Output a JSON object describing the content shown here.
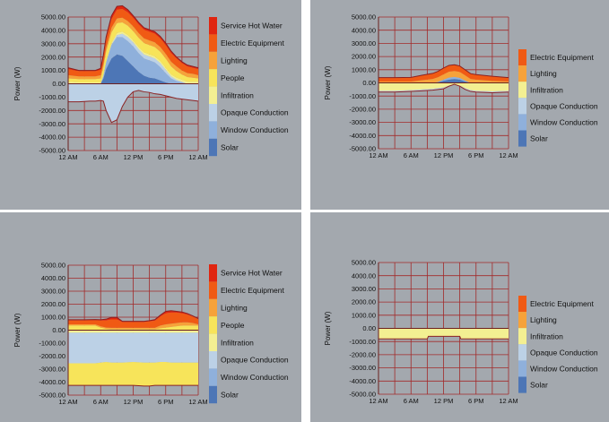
{
  "palette": {
    "shw": "#e02510",
    "eeq": "#f05a14",
    "lig": "#f6a23a",
    "ppl": "#f7e45a",
    "inf": "#f3ef92",
    "opq": "#bcd1e6",
    "win": "#8fb0db",
    "sol": "#4d76b6",
    "grid": "#a32a2a",
    "axis": "#6b1f1f",
    "edge": "#8b2222"
  },
  "chart_data": [
    {
      "type": "area",
      "subtype": "stacked",
      "ylabel": "Power (W)",
      "ylim": [
        -5000,
        5000
      ],
      "yticks": [
        "5000.00",
        "4000.00",
        "3000.00",
        "2000.00",
        "1000.00",
        "0.00",
        "-1000.00",
        "-2000.00",
        "-3000.00",
        "-4000.00",
        "-5000.00"
      ],
      "xticks": [
        "12 AM",
        "6 AM",
        "12 PM",
        "6 PM",
        "12 AM"
      ],
      "x": [
        0,
        2,
        4,
        5,
        6,
        6.5,
        7,
        8,
        9,
        10,
        11,
        12,
        13,
        14,
        15,
        16,
        17,
        18,
        19,
        20,
        21,
        22,
        23,
        24
      ],
      "legend": [
        "Service Hot Water",
        "Electric Equipment",
        "Lighting",
        "People",
        "Infiltration",
        "Opaque Conduction",
        "Window Conduction",
        "Solar"
      ],
      "legend_keys": [
        "shw",
        "eeq",
        "lig",
        "ppl",
        "inf",
        "opq",
        "win",
        "sol"
      ],
      "positive": [
        {
          "key": "sol",
          "values": [
            0,
            0,
            0,
            0,
            0,
            400,
            1100,
            1900,
            2200,
            2100,
            1700,
            1300,
            900,
            600,
            450,
            400,
            250,
            100,
            0,
            0,
            0,
            0,
            0,
            0
          ]
        },
        {
          "key": "win",
          "values": [
            0,
            0,
            0,
            0,
            0,
            200,
            500,
            1000,
            1300,
            1400,
            1500,
            1500,
            1400,
            1300,
            1300,
            1200,
            1000,
            700,
            400,
            200,
            100,
            0,
            0,
            0
          ]
        },
        {
          "key": "opq",
          "values": [
            0,
            0,
            0,
            0,
            0,
            0,
            0,
            50,
            150,
            250,
            300,
            300,
            300,
            300,
            300,
            300,
            300,
            250,
            150,
            100,
            50,
            0,
            0,
            0
          ]
        },
        {
          "key": "inf",
          "values": [
            150,
            100,
            100,
            100,
            100,
            100,
            100,
            100,
            150,
            150,
            150,
            150,
            150,
            150,
            150,
            150,
            150,
            150,
            150,
            150,
            150,
            150,
            150,
            150
          ]
        },
        {
          "key": "ppl",
          "values": [
            250,
            250,
            250,
            250,
            300,
            550,
            700,
            800,
            750,
            700,
            700,
            700,
            700,
            700,
            700,
            700,
            700,
            700,
            600,
            500,
            400,
            350,
            300,
            250
          ]
        },
        {
          "key": "lig",
          "values": [
            250,
            200,
            200,
            200,
            250,
            250,
            300,
            350,
            350,
            350,
            350,
            350,
            350,
            350,
            350,
            350,
            350,
            350,
            350,
            350,
            300,
            300,
            300,
            250
          ]
        },
        {
          "key": "eeq",
          "values": [
            450,
            400,
            400,
            400,
            400,
            500,
            600,
            650,
            650,
            650,
            650,
            650,
            650,
            650,
            650,
            650,
            650,
            650,
            650,
            600,
            550,
            500,
            450,
            450
          ]
        },
        {
          "key": "shw",
          "values": [
            100,
            50,
            50,
            50,
            100,
            150,
            200,
            250,
            250,
            250,
            200,
            150,
            150,
            150,
            150,
            150,
            150,
            150,
            150,
            100,
            100,
            100,
            100,
            100
          ]
        }
      ],
      "negative": [
        {
          "key": "opq",
          "values": [
            -1350,
            -1350,
            -1300,
            -1300,
            -1250,
            -1300,
            -2000,
            -2900,
            -2700,
            -1700,
            -1000,
            -600,
            -500,
            -600,
            -650,
            -750,
            -800,
            -900,
            -1000,
            -1100,
            -1150,
            -1200,
            -1250,
            -1300
          ]
        }
      ]
    },
    {
      "type": "area",
      "subtype": "stacked",
      "ylabel": "Power (W)",
      "ylim": [
        -5000,
        5000
      ],
      "yticks": [
        "5000.00",
        "4000.00",
        "3000.00",
        "2000.00",
        "1000.00",
        "0.00",
        "-1000.00",
        "-2000.00",
        "-3000.00",
        "-4000.00",
        "-5000.00"
      ],
      "xticks": [
        "12 AM",
        "6 AM",
        "12 PM",
        "6 PM",
        "12 AM"
      ],
      "x": [
        0,
        3,
        6,
        8,
        10,
        11,
        12,
        13,
        14,
        15,
        16,
        17,
        18,
        21,
        24
      ],
      "legend": [
        "Electric Equipment",
        "Lighting",
        "Infiltration",
        "Opaque Conduction",
        "Window Conduction",
        "Solar"
      ],
      "legend_keys": [
        "eeq",
        "lig",
        "inf",
        "opq",
        "win",
        "sol"
      ],
      "positive": [
        {
          "key": "sol",
          "values": [
            0,
            0,
            0,
            0,
            0,
            50,
            150,
            250,
            300,
            250,
            100,
            0,
            0,
            0,
            0
          ]
        },
        {
          "key": "win",
          "values": [
            0,
            0,
            0,
            0,
            0,
            30,
            100,
            150,
            150,
            130,
            70,
            0,
            0,
            0,
            0
          ]
        },
        {
          "key": "lig",
          "values": [
            100,
            100,
            100,
            200,
            300,
            350,
            400,
            450,
            450,
            450,
            400,
            300,
            250,
            150,
            100
          ]
        },
        {
          "key": "eeq",
          "values": [
            300,
            300,
            320,
            380,
            420,
            450,
            480,
            480,
            480,
            450,
            420,
            400,
            380,
            350,
            300
          ]
        }
      ],
      "negative": [
        {
          "key": "inf",
          "values": [
            -600,
            -600,
            -550,
            -500,
            -450,
            -400,
            -350,
            -200,
            -100,
            -200,
            -400,
            -550,
            -600,
            -650,
            -600
          ]
        },
        {
          "key": "opq",
          "values": [
            -100,
            -100,
            -100,
            -100,
            -100,
            -100,
            -100,
            -50,
            0,
            -50,
            -100,
            -100,
            -100,
            -100,
            -100
          ]
        }
      ]
    },
    {
      "type": "area",
      "subtype": "stacked",
      "ylabel": "Power (W)",
      "ylim": [
        -5000,
        5000
      ],
      "yticks": [
        "5000.00",
        "4000.00",
        "3000.00",
        "2000.00",
        "1000.00",
        "0.00",
        "-1000.00",
        "-2000.00",
        "-3000.00",
        "-4000.00",
        "-5000.00"
      ],
      "xticks": [
        "12 AM",
        "6 AM",
        "12 PM",
        "6 PM",
        "12 AM"
      ],
      "x": [
        0,
        3,
        5,
        6,
        7,
        8,
        9,
        10,
        12,
        14,
        15,
        16,
        17,
        18,
        19,
        20,
        21,
        22,
        23,
        24
      ],
      "legend": [
        "Service Hot Water",
        "Electric Equipment",
        "Lighting",
        "People",
        "Infiltration",
        "Opaque Conduction",
        "Window Conduction",
        "Solar"
      ],
      "legend_keys": [
        "shw",
        "eeq",
        "lig",
        "ppl",
        "inf",
        "opq",
        "win",
        "sol"
      ],
      "positive": [
        {
          "key": "ppl",
          "values": [
            350,
            350,
            350,
            200,
            100,
            80,
            80,
            80,
            80,
            80,
            80,
            80,
            150,
            200,
            250,
            300,
            350,
            350,
            350,
            350
          ]
        },
        {
          "key": "lig",
          "values": [
            100,
            100,
            100,
            100,
            100,
            100,
            100,
            100,
            100,
            100,
            100,
            100,
            200,
            250,
            250,
            250,
            250,
            250,
            200,
            100
          ]
        },
        {
          "key": "eeq",
          "values": [
            300,
            300,
            320,
            450,
            550,
            650,
            650,
            450,
            450,
            450,
            500,
            550,
            700,
            850,
            850,
            800,
            700,
            600,
            500,
            400
          ]
        },
        {
          "key": "shw",
          "values": [
            50,
            50,
            50,
            50,
            100,
            150,
            150,
            50,
            50,
            50,
            50,
            80,
            100,
            150,
            150,
            100,
            100,
            80,
            50,
            50
          ]
        }
      ],
      "negative": [
        {
          "key": "inf",
          "values": [
            -200,
            -200,
            -200,
            -200,
            -200,
            -200,
            -200,
            -200,
            -200,
            -200,
            -200,
            -200,
            -200,
            -200,
            -200,
            -200,
            -200,
            -200,
            -200,
            -200
          ]
        },
        {
          "key": "opq",
          "values": [
            -2350,
            -2350,
            -2350,
            -2300,
            -2250,
            -2300,
            -2300,
            -2300,
            -2250,
            -2300,
            -2300,
            -2300,
            -2250,
            -2250,
            -2300,
            -2300,
            -2300,
            -2300,
            -2300,
            -2300
          ]
        },
        {
          "key": "ppl",
          "values": [
            -1700,
            -1700,
            -1700,
            -1750,
            -1800,
            -1750,
            -1750,
            -1750,
            -1800,
            -1800,
            -1800,
            -1750,
            -1800,
            -1800,
            -1750,
            -1750,
            -1750,
            -1750,
            -1750,
            -1750
          ]
        }
      ]
    },
    {
      "type": "area",
      "subtype": "stacked",
      "ylabel": "Power (W)",
      "ylim": [
        -5000,
        5000
      ],
      "yticks": [
        "5000.00",
        "4000.00",
        "3000.00",
        "2000.00",
        "1000.00",
        "0.00",
        "-1000.00",
        "-2000.00",
        "-3000.00",
        "-4000.00",
        "-5000.00"
      ],
      "xticks": [
        "12 AM",
        "6 AM",
        "12 PM",
        "6 PM",
        "12 AM"
      ],
      "x": [
        0,
        9,
        9.2,
        15,
        15.2,
        24
      ],
      "legend": [
        "Electric Equipment",
        "Lighting",
        "Infiltration",
        "Opaque Conduction",
        "Window Conduction",
        "Solar"
      ],
      "legend_keys": [
        "eeq",
        "lig",
        "inf",
        "opq",
        "win",
        "sol"
      ],
      "positive": [],
      "negative": [
        {
          "key": "inf",
          "values": [
            -800,
            -800,
            -600,
            -600,
            -800,
            -800
          ]
        }
      ]
    }
  ]
}
